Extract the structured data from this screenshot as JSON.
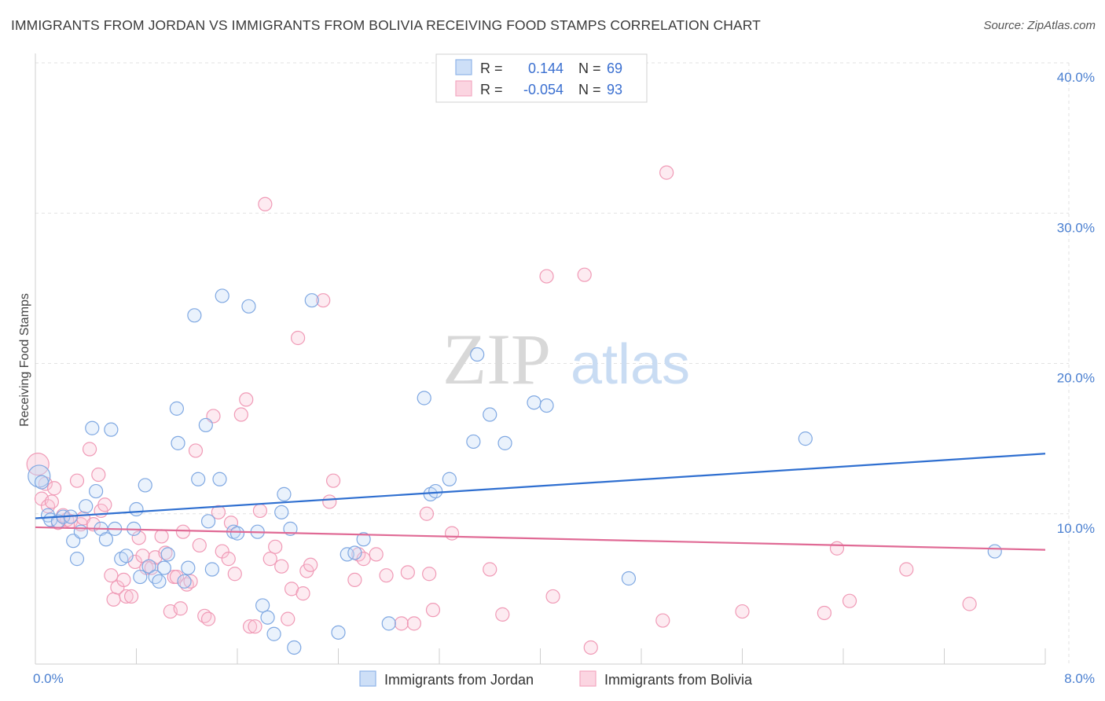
{
  "title": "IMMIGRANTS FROM JORDAN VS IMMIGRANTS FROM BOLIVIA RECEIVING FOOD STAMPS CORRELATION CHART",
  "source": "Source: ZipAtlas.com",
  "watermark": {
    "zip": "ZIP",
    "atlas": "atlas"
  },
  "legend": {
    "rows": [
      {
        "r_label": "R =",
        "r_value": "0.144",
        "n_label": "N =",
        "n_value": "69",
        "color": "#8fb4e8"
      },
      {
        "r_label": "R =",
        "r_value": "-0.054",
        "n_label": "N =",
        "n_value": "93",
        "color": "#f4a8c0"
      }
    ]
  },
  "chart_data": {
    "type": "scatter",
    "title": "IMMIGRANTS FROM JORDAN VS IMMIGRANTS FROM BOLIVIA RECEIVING FOOD STAMPS CORRELATION CHART",
    "xlabel": "",
    "ylabel": "Receiving Food Stamps",
    "xlim": [
      0,
      8
    ],
    "ylim": [
      0,
      40
    ],
    "x_tick_labels": [
      "0.0%",
      "8.0%"
    ],
    "y_tick_labels": [
      "10.0%",
      "20.0%",
      "30.0%",
      "40.0%"
    ],
    "y_ticks": [
      10,
      20,
      30,
      40
    ],
    "grid": true,
    "legend_position": "top-center",
    "series": [
      {
        "name": "Immigrants from Jordan",
        "color": "#8fb4e8",
        "line_color": "#2f6fd0",
        "trend": {
          "x": [
            0,
            8
          ],
          "y": [
            9.7,
            14.0
          ]
        },
        "points": [
          [
            0.03,
            12.5
          ],
          [
            0.05,
            12.1
          ],
          [
            0.1,
            9.9
          ],
          [
            0.12,
            9.6
          ],
          [
            0.18,
            9.5
          ],
          [
            0.22,
            9.8
          ],
          [
            0.28,
            9.8
          ],
          [
            0.3,
            8.2
          ],
          [
            0.33,
            7.0
          ],
          [
            0.36,
            8.8
          ],
          [
            0.4,
            10.5
          ],
          [
            0.45,
            15.7
          ],
          [
            0.48,
            11.5
          ],
          [
            0.52,
            9.0
          ],
          [
            0.56,
            8.3
          ],
          [
            0.6,
            15.6
          ],
          [
            0.63,
            9.0
          ],
          [
            0.68,
            7.0
          ],
          [
            0.72,
            7.2
          ],
          [
            0.78,
            9.0
          ],
          [
            0.8,
            10.3
          ],
          [
            0.83,
            5.8
          ],
          [
            0.87,
            11.9
          ],
          [
            0.9,
            6.5
          ],
          [
            0.95,
            5.8
          ],
          [
            0.98,
            5.5
          ],
          [
            1.02,
            6.4
          ],
          [
            1.05,
            7.3
          ],
          [
            1.12,
            17.0
          ],
          [
            1.13,
            14.7
          ],
          [
            1.18,
            5.5
          ],
          [
            1.21,
            6.4
          ],
          [
            1.26,
            23.2
          ],
          [
            1.29,
            12.3
          ],
          [
            1.35,
            15.9
          ],
          [
            1.37,
            9.5
          ],
          [
            1.4,
            6.3
          ],
          [
            1.46,
            12.3
          ],
          [
            1.48,
            24.5
          ],
          [
            1.57,
            8.8
          ],
          [
            1.6,
            8.7
          ],
          [
            1.69,
            23.8
          ],
          [
            1.76,
            8.8
          ],
          [
            1.8,
            3.9
          ],
          [
            1.84,
            3.1
          ],
          [
            1.89,
            2.0
          ],
          [
            1.95,
            10.1
          ],
          [
            1.97,
            11.3
          ],
          [
            2.02,
            9.0
          ],
          [
            2.05,
            1.1
          ],
          [
            2.19,
            24.2
          ],
          [
            2.4,
            2.1
          ],
          [
            2.47,
            7.3
          ],
          [
            2.53,
            7.4
          ],
          [
            2.6,
            8.3
          ],
          [
            2.8,
            2.7
          ],
          [
            3.08,
            17.7
          ],
          [
            3.13,
            11.3
          ],
          [
            3.17,
            11.5
          ],
          [
            3.28,
            12.3
          ],
          [
            3.47,
            14.8
          ],
          [
            3.5,
            20.6
          ],
          [
            3.6,
            16.6
          ],
          [
            3.72,
            14.7
          ],
          [
            3.95,
            17.4
          ],
          [
            4.05,
            17.2
          ],
          [
            4.7,
            5.7
          ],
          [
            6.1,
            15.0
          ],
          [
            7.6,
            7.5
          ]
        ]
      },
      {
        "name": "Immigrants from Bolivia",
        "color": "#f4a8c0",
        "line_color": "#e06a95",
        "trend": {
          "x": [
            0,
            8
          ],
          "y": [
            9.1,
            7.6
          ]
        },
        "points": [
          [
            0.02,
            13.3
          ],
          [
            0.05,
            11.0
          ],
          [
            0.08,
            12.0
          ],
          [
            0.1,
            10.5
          ],
          [
            0.13,
            10.8
          ],
          [
            0.15,
            11.7
          ],
          [
            0.18,
            9.4
          ],
          [
            0.22,
            9.9
          ],
          [
            0.25,
            9.6
          ],
          [
            0.28,
            9.5
          ],
          [
            0.33,
            12.2
          ],
          [
            0.36,
            9.3
          ],
          [
            0.38,
            9.7
          ],
          [
            0.43,
            14.3
          ],
          [
            0.46,
            9.3
          ],
          [
            0.5,
            12.6
          ],
          [
            0.52,
            10.2
          ],
          [
            0.55,
            10.6
          ],
          [
            0.6,
            5.9
          ],
          [
            0.62,
            4.3
          ],
          [
            0.65,
            5.1
          ],
          [
            0.7,
            5.6
          ],
          [
            0.72,
            4.5
          ],
          [
            0.76,
            4.5
          ],
          [
            0.79,
            6.8
          ],
          [
            0.82,
            8.4
          ],
          [
            0.85,
            7.2
          ],
          [
            0.88,
            6.4
          ],
          [
            0.92,
            6.4
          ],
          [
            0.95,
            7.1
          ],
          [
            1.0,
            8.5
          ],
          [
            1.03,
            7.4
          ],
          [
            1.07,
            3.5
          ],
          [
            1.1,
            5.8
          ],
          [
            1.12,
            5.8
          ],
          [
            1.15,
            3.7
          ],
          [
            1.17,
            8.8
          ],
          [
            1.2,
            5.3
          ],
          [
            1.23,
            5.5
          ],
          [
            1.27,
            14.2
          ],
          [
            1.3,
            7.9
          ],
          [
            1.34,
            3.2
          ],
          [
            1.37,
            3.0
          ],
          [
            1.41,
            16.5
          ],
          [
            1.45,
            10.1
          ],
          [
            1.48,
            7.5
          ],
          [
            1.53,
            7.0
          ],
          [
            1.55,
            9.4
          ],
          [
            1.58,
            6.0
          ],
          [
            1.63,
            16.6
          ],
          [
            1.67,
            17.6
          ],
          [
            1.7,
            2.5
          ],
          [
            1.74,
            2.5
          ],
          [
            1.78,
            10.2
          ],
          [
            1.82,
            30.6
          ],
          [
            1.86,
            7.0
          ],
          [
            1.9,
            7.8
          ],
          [
            1.95,
            6.5
          ],
          [
            2.0,
            3.0
          ],
          [
            2.03,
            5.0
          ],
          [
            2.08,
            21.7
          ],
          [
            2.12,
            4.7
          ],
          [
            2.15,
            6.2
          ],
          [
            2.18,
            6.6
          ],
          [
            2.28,
            24.2
          ],
          [
            2.33,
            10.8
          ],
          [
            2.36,
            12.2
          ],
          [
            2.53,
            5.6
          ],
          [
            2.56,
            7.3
          ],
          [
            2.6,
            7.0
          ],
          [
            2.7,
            7.3
          ],
          [
            2.78,
            5.9
          ],
          [
            2.9,
            2.7
          ],
          [
            2.95,
            6.1
          ],
          [
            3.0,
            2.7
          ],
          [
            3.1,
            10.0
          ],
          [
            3.12,
            6.0
          ],
          [
            3.15,
            3.6
          ],
          [
            3.3,
            8.7
          ],
          [
            3.6,
            6.3
          ],
          [
            3.7,
            3.3
          ],
          [
            4.05,
            25.8
          ],
          [
            4.1,
            4.5
          ],
          [
            4.35,
            25.9
          ],
          [
            4.4,
            1.1
          ],
          [
            4.97,
            2.9
          ],
          [
            5.0,
            32.7
          ],
          [
            5.6,
            3.5
          ],
          [
            6.25,
            3.4
          ],
          [
            6.35,
            7.7
          ],
          [
            6.45,
            4.2
          ],
          [
            6.9,
            6.3
          ],
          [
            7.4,
            4.0
          ]
        ]
      }
    ]
  }
}
